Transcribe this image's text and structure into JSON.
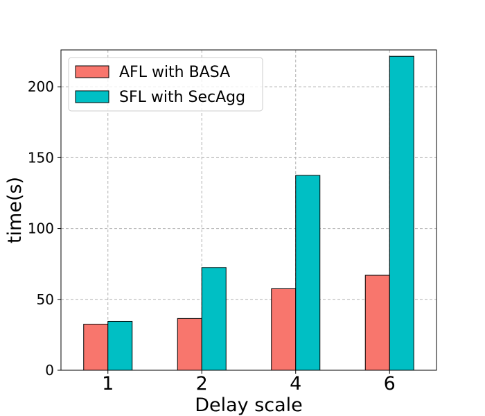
{
  "chart_data": {
    "type": "bar",
    "title": "",
    "xlabel": "Delay scale",
    "ylabel": "time(s)",
    "categories": [
      "1",
      "2",
      "4",
      "6"
    ],
    "series": [
      {
        "name": "AFL with BASA",
        "color": "#f8766d",
        "values": [
          32.5,
          36.5,
          57.5,
          67
        ]
      },
      {
        "name": "SFL with SecAgg",
        "color": "#00bfc4",
        "values": [
          34.5,
          72.5,
          137.5,
          221.5
        ]
      }
    ],
    "ylim": [
      0,
      226
    ],
    "yticks": [
      0,
      50,
      100,
      150,
      200
    ],
    "grid": true,
    "legend_position": "top-left"
  }
}
